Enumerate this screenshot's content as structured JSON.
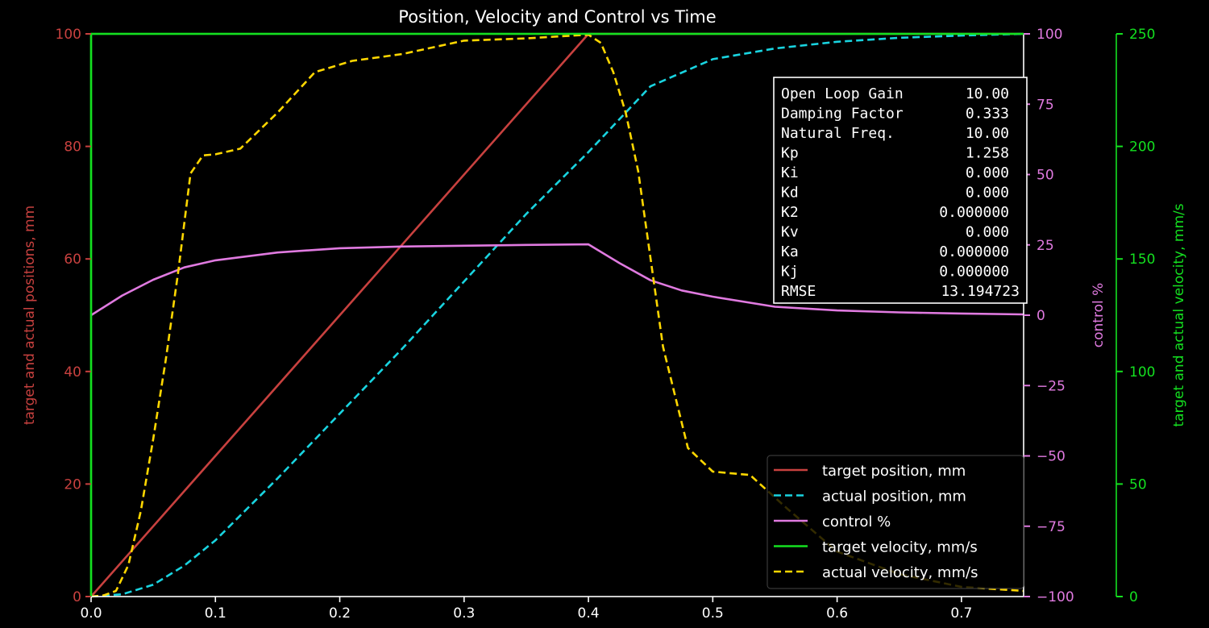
{
  "chart_data": {
    "type": "line",
    "title": "Position, Velocity and Control vs Time",
    "xlabel": "",
    "xlim": [
      0,
      0.75
    ],
    "xticks": [
      "0.0",
      "0.1",
      "0.2",
      "0.3",
      "0.4",
      "0.5",
      "0.6",
      "0.7"
    ],
    "grid": false,
    "legend_placement": "lower-right",
    "axes": {
      "left": {
        "label": "target and actual positions, mm",
        "ylim": [
          0,
          100
        ],
        "ticks": [
          "0",
          "20",
          "40",
          "60",
          "80",
          "100"
        ],
        "color": "#c8413f"
      },
      "right1": {
        "label": "control %",
        "ylim": [
          -100,
          100
        ],
        "ticks": [
          "−100",
          "−75",
          "−50",
          "−25",
          "0",
          "25",
          "50",
          "75",
          "100"
        ],
        "color": "#e07ae0"
      },
      "right2": {
        "label": "target and actual velocity, mm/s",
        "ylim": [
          0,
          250
        ],
        "ticks": [
          "0",
          "50",
          "100",
          "150",
          "200",
          "250"
        ],
        "color": "#14e020"
      }
    },
    "series": [
      {
        "name": "target position, mm",
        "axis": "left",
        "color": "#c8413f",
        "dash": false,
        "x": [
          0,
          0.4,
          0.75
        ],
        "y": [
          0,
          100,
          100
        ]
      },
      {
        "name": "actual position, mm",
        "axis": "left",
        "color": "#19d4e0",
        "dash": true,
        "x": [
          0,
          0.025,
          0.05,
          0.075,
          0.1,
          0.15,
          0.2,
          0.25,
          0.3,
          0.35,
          0.4,
          0.45,
          0.5,
          0.55,
          0.6,
          0.65,
          0.7,
          0.75
        ],
        "y": [
          0,
          0.4,
          2.1,
          5.5,
          10,
          21,
          32.5,
          44,
          56,
          68,
          79,
          90.7,
          95.5,
          97.4,
          98.6,
          99.3,
          99.7,
          100
        ]
      },
      {
        "name": "control %",
        "axis": "right1",
        "color": "#e07ae0",
        "dash": false,
        "x": [
          0,
          0.025,
          0.05,
          0.075,
          0.1,
          0.15,
          0.2,
          0.25,
          0.3,
          0.35,
          0.4,
          0.425,
          0.45,
          0.475,
          0.5,
          0.55,
          0.6,
          0.65,
          0.7,
          0.75
        ],
        "y": [
          0,
          7,
          12.6,
          17,
          19.5,
          22.3,
          23.8,
          24.4,
          24.7,
          25,
          25.2,
          18.5,
          12.4,
          8.8,
          6.6,
          3,
          1.7,
          1,
          0.6,
          0.3
        ]
      },
      {
        "name": "target velocity, mm/s",
        "axis": "right2",
        "color": "#14e020",
        "dash": false,
        "x": [
          0,
          0,
          0.75
        ],
        "y": [
          0,
          250,
          250
        ]
      },
      {
        "name": "actual velocity, mm/s",
        "axis": "right2",
        "color": "#ffd700",
        "dash": true,
        "x": [
          0,
          0.01,
          0.02,
          0.03,
          0.04,
          0.05,
          0.06,
          0.07,
          0.08,
          0.09,
          0.1,
          0.12,
          0.15,
          0.18,
          0.21,
          0.25,
          0.3,
          0.35,
          0.38,
          0.4,
          0.41,
          0.42,
          0.43,
          0.44,
          0.45,
          0.46,
          0.48,
          0.5,
          0.53,
          0.56,
          0.6,
          0.65,
          0.7,
          0.75
        ],
        "y": [
          0,
          0.5,
          2.5,
          14,
          38,
          70,
          105,
          144,
          188,
          196,
          196.5,
          199,
          215,
          233,
          238,
          241,
          247,
          248,
          249,
          249.6,
          246,
          233,
          215,
          189,
          150,
          111,
          66,
          55.5,
          54,
          39,
          20,
          10,
          4.3,
          2.5
        ]
      }
    ],
    "annotation_box": [
      {
        "label": "Open Loop Gain",
        "value": "10.00"
      },
      {
        "label": "Damping Factor",
        "value": "0.333"
      },
      {
        "label": "Natural Freq.",
        "value": "10.00"
      },
      {
        "label": "Kp",
        "value": "1.258"
      },
      {
        "label": "Ki",
        "value": "0.000"
      },
      {
        "label": "Kd",
        "value": "0.000"
      },
      {
        "label": "K2",
        "value": "0.000000"
      },
      {
        "label": "Kv",
        "value": "0.000"
      },
      {
        "label": "Ka",
        "value": "0.000000"
      },
      {
        "label": "Kj",
        "value": "0.000000"
      },
      {
        "label": "RMSE",
        "value": "13.194723"
      }
    ]
  }
}
